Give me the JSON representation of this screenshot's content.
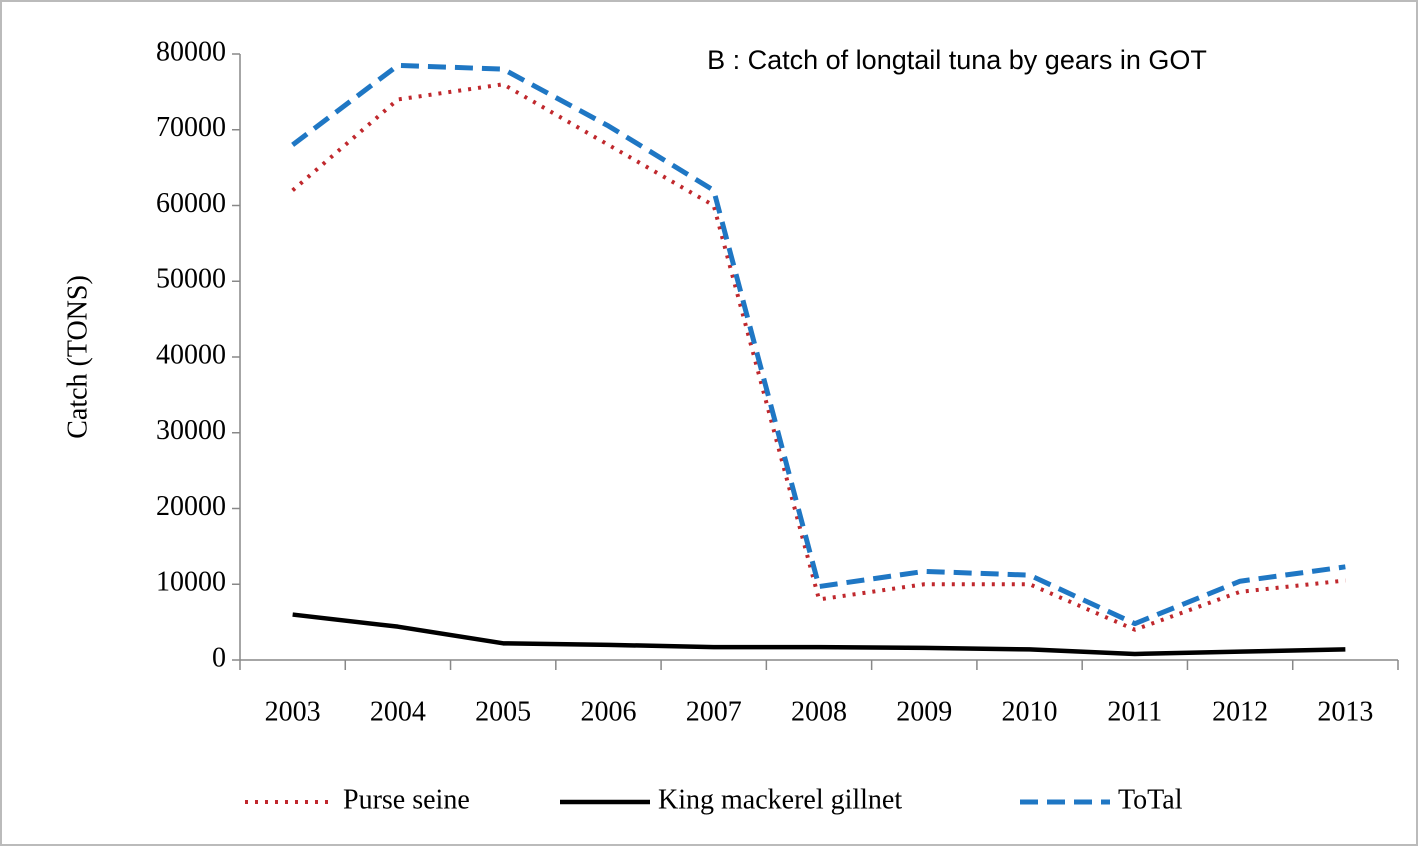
{
  "chart_data": {
    "type": "line",
    "title": "B : Catch of longtail tuna by gears  in GOT",
    "y_label": "Catch (TONS)",
    "categories": [
      "2003",
      "2004",
      "2005",
      "2006",
      "2007",
      "2008",
      "2009",
      "2010",
      "2011",
      "2012",
      "2013"
    ],
    "series": [
      {
        "name": "Purse seine",
        "color": "#c0282d",
        "dash": "dotted",
        "values": [
          62000,
          74000,
          76000,
          68000,
          60000,
          8000,
          10000,
          10000,
          4000,
          9000,
          10500
        ]
      },
      {
        "name": "King mackerel gillnet",
        "color": "#000000",
        "dash": "solid",
        "values": [
          6000,
          4400,
          2200,
          2000,
          1700,
          1700,
          1600,
          1400,
          800,
          1100,
          1400
        ]
      },
      {
        "name": "ToTal",
        "color": "#1f77c4",
        "dash": "dashed",
        "values": [
          68000,
          78500,
          78000,
          70500,
          62000,
          9700,
          11700,
          11200,
          4800,
          10400,
          12300
        ]
      }
    ],
    "ylim": [
      0,
      80000
    ],
    "yticks": [
      0,
      10000,
      20000,
      30000,
      40000,
      50000,
      60000,
      70000,
      80000
    ],
    "legend": "bottom"
  }
}
